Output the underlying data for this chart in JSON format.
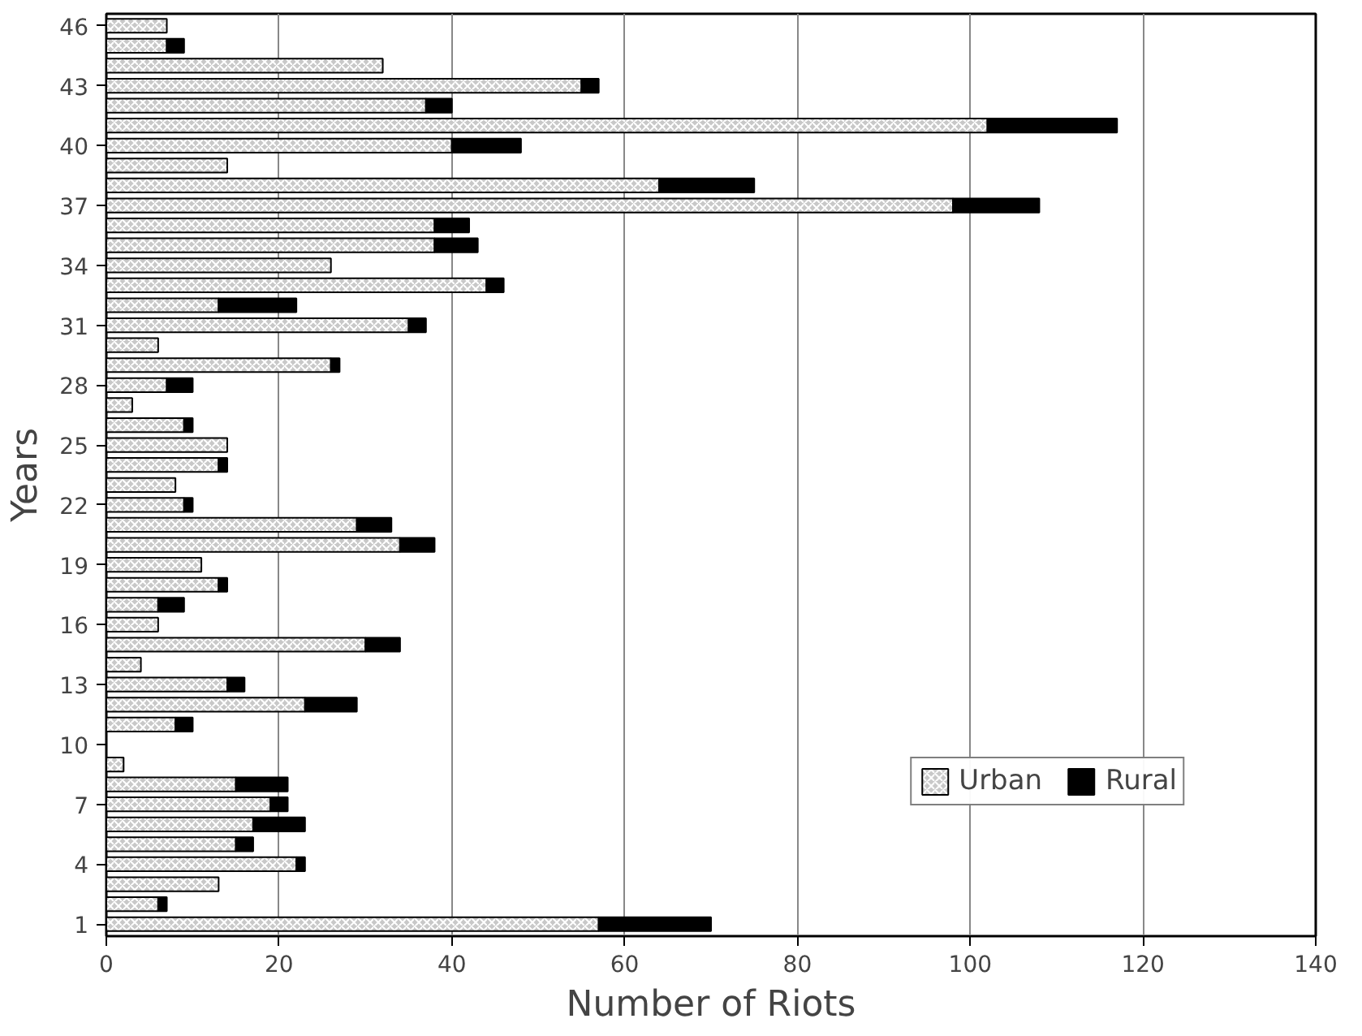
{
  "chart_data": {
    "type": "bar",
    "orientation": "horizontal",
    "stacked": true,
    "xlabel": "Number of Riots",
    "ylabel": "Years",
    "categories": [
      "46",
      null,
      null,
      "43",
      null,
      null,
      "40",
      null,
      null,
      "37",
      null,
      null,
      "34",
      null,
      null,
      "31",
      null,
      null,
      "28",
      null,
      null,
      "25",
      null,
      null,
      "22",
      null,
      null,
      "19",
      null,
      null,
      "16",
      null,
      null,
      "13",
      null,
      null,
      "10",
      null,
      null,
      "7",
      null,
      null,
      "4",
      null,
      null,
      "1"
    ],
    "series": [
      {
        "name": "Urban",
        "color": "#c8c8c8",
        "values": [
          7,
          7,
          32,
          55,
          37,
          102,
          40,
          14,
          64,
          98,
          38,
          38,
          26,
          44,
          13,
          35,
          6,
          26,
          7,
          3,
          9,
          14,
          13,
          8,
          9,
          29,
          34,
          11,
          13,
          6,
          6,
          30,
          4,
          14,
          23,
          8,
          0,
          2,
          15,
          19,
          17,
          15,
          22,
          13,
          6,
          57
        ]
      },
      {
        "name": "Rural",
        "color": "#000000",
        "values": [
          0,
          2,
          0,
          2,
          3,
          15,
          8,
          0,
          11,
          10,
          4,
          5,
          0,
          2,
          9,
          2,
          0,
          1,
          3,
          0,
          1,
          0,
          1,
          0,
          1,
          4,
          4,
          0,
          1,
          3,
          0,
          4,
          0,
          2,
          6,
          2,
          0,
          0,
          6,
          2,
          6,
          2,
          1,
          0,
          1,
          13
        ]
      }
    ],
    "xlim": [
      0,
      140
    ],
    "xticks": [
      0,
      20,
      40,
      60,
      80,
      100,
      120,
      140
    ],
    "grid": "x",
    "legend": "bottom right"
  }
}
